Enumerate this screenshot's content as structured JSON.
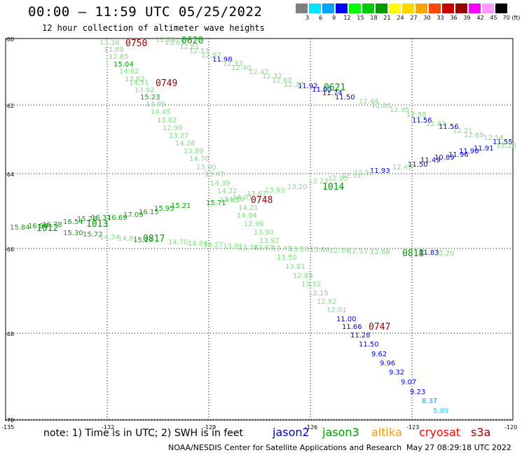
{
  "header": {
    "title": "00:00 – 11:59 UTC 05/25/2022",
    "subtitle": "12 hour collection of altimeter wave heights"
  },
  "colorbar": {
    "swatches": [
      "#7f7f7f",
      "#00e5ff",
      "#00a5ff",
      "#0000ff",
      "#00ff00",
      "#00cc00",
      "#009900",
      "#ffff00",
      "#ffd700",
      "#ffa500",
      "#ff4500",
      "#cc0000",
      "#990000",
      "#ff00ff",
      "#ff99ff",
      "#000000"
    ],
    "labels": [
      "3",
      "6",
      "9",
      "12",
      "15",
      "18",
      "21",
      "24",
      "27",
      "30",
      "33",
      "36",
      "39",
      "42",
      "45",
      "70 (ft)"
    ]
  },
  "axes": {
    "lat_labels": [
      "-60",
      "-62",
      "-64",
      "-66",
      "-68",
      "-70"
    ],
    "lon_labels": [
      "-135",
      "-132",
      "-129",
      "-126",
      "-123",
      "-120"
    ]
  },
  "footer": {
    "note": "note: 1) Time is in UTC; 2) SWH is in feet",
    "missions": [
      {
        "name": "jason2",
        "color": "#0000cc"
      },
      {
        "name": "jason3",
        "color": "#009900"
      },
      {
        "name": "altika",
        "color": "#ff9900"
      },
      {
        "name": "cryosat",
        "color": "#ff0000"
      },
      {
        "name": "s3a",
        "color": "#990000"
      }
    ],
    "credit": "NOAA/NESDIS Center for Satellite Applications and Research",
    "timestamp": "May 27 08:29:18 UTC 2022"
  },
  "map_labels": [
    {
      "t": "13.38",
      "c": "#7ee07e"
    },
    {
      "t": "13.89",
      "c": "#7ee07e"
    },
    {
      "t": "12.65",
      "c": "#7ee07e"
    },
    {
      "t": "15.04",
      "c": "#00aa00"
    },
    {
      "t": "14.62",
      "c": "#7ee07e"
    },
    {
      "t": "13.82",
      "c": "#7ee07e"
    },
    {
      "t": "14.51",
      "c": "#7ee07e"
    },
    {
      "t": "13.92",
      "c": "#7ee07e"
    },
    {
      "t": "15.23",
      "c": "#00aa00"
    },
    {
      "t": "14.95",
      "c": "#7ee07e"
    },
    {
      "t": "14.45",
      "c": "#7ee07e"
    },
    {
      "t": "13.82",
      "c": "#7ee07e"
    },
    {
      "t": "12.90",
      "c": "#7ee07e"
    },
    {
      "t": "13.27",
      "c": "#7ee07e"
    },
    {
      "t": "14.26",
      "c": "#7ee07e"
    },
    {
      "t": "13.89",
      "c": "#7ee07e"
    },
    {
      "t": "14.70",
      "c": "#7ee07e"
    },
    {
      "t": "13.90",
      "c": "#7ee07e"
    },
    {
      "t": "13.47",
      "c": "#7ee07e"
    },
    {
      "t": "14.39",
      "c": "#7ee07e"
    },
    {
      "t": "14.22",
      "c": "#7ee07e"
    },
    {
      "t": "14.30",
      "c": "#7ee07e"
    },
    {
      "t": "14.21",
      "c": "#7ee07e"
    },
    {
      "t": "14.94",
      "c": "#7ee07e"
    },
    {
      "t": "12.96",
      "c": "#7ee07e"
    },
    {
      "t": "13.90",
      "c": "#7ee07e"
    },
    {
      "t": "13.92",
      "c": "#7ee07e"
    },
    {
      "t": "13.50",
      "c": "#7ee07e"
    },
    {
      "t": "13.81",
      "c": "#7ee07e"
    },
    {
      "t": "12.89",
      "c": "#7ee07e"
    },
    {
      "t": "13.52",
      "c": "#7ee07e"
    },
    {
      "t": "12.15",
      "c": "#7ee07e"
    },
    {
      "t": "12.92",
      "c": "#7ee07e"
    },
    {
      "t": "12.01",
      "c": "#7ee07e"
    },
    {
      "t": "11.00",
      "c": "#0000ff"
    },
    {
      "t": "11.66",
      "c": "#0000ff"
    },
    {
      "t": "11.28",
      "c": "#0000ff"
    },
    {
      "t": "11.50",
      "c": "#0000ff"
    },
    {
      "t": "9.62",
      "c": "#0000ff"
    },
    {
      "t": "9.96",
      "c": "#0000ff"
    },
    {
      "t": "9.32",
      "c": "#0000ff"
    },
    {
      "t": "9.07",
      "c": "#0000ff"
    },
    {
      "t": "9.23",
      "c": "#0000ff"
    },
    {
      "t": "8.37",
      "c": "#00a5ff"
    },
    {
      "t": "5.89",
      "c": "#00e5ff"
    },
    {
      "t": "12.79",
      "c": "#7ee07e"
    },
    {
      "t": "13.65",
      "c": "#7ee07e"
    },
    {
      "t": "12.81",
      "c": "#7ee07e"
    },
    {
      "t": "12.53",
      "c": "#7ee07e"
    },
    {
      "t": "12.87",
      "c": "#7ee07e"
    },
    {
      "t": "11.98",
      "c": "#0000ff"
    },
    {
      "t": "12.33",
      "c": "#7ee07e"
    },
    {
      "t": "12.40",
      "c": "#7ee07e"
    },
    {
      "t": "12.42",
      "c": "#7ee07e"
    },
    {
      "t": "12.32",
      "c": "#7ee07e"
    },
    {
      "t": "12.62",
      "c": "#7ee07e"
    },
    {
      "t": "12.32",
      "c": "#7ee07e"
    },
    {
      "t": "11.92",
      "c": "#0000ff"
    },
    {
      "t": "11.03",
      "c": "#0000ff"
    },
    {
      "t": "11.74",
      "c": "#0000ff"
    },
    {
      "t": "11.50",
      "c": "#0000ff"
    },
    {
      "t": "12.44",
      "c": "#7ee07e"
    },
    {
      "t": "12.85",
      "c": "#7ee07e"
    },
    {
      "t": "12.95",
      "c": "#7ee07e"
    },
    {
      "t": "12.58",
      "c": "#7ee07e"
    },
    {
      "t": "11.56",
      "c": "#0000ff"
    },
    {
      "t": "12.82",
      "c": "#7ee07e"
    },
    {
      "t": "11.56",
      "c": "#0000ff"
    },
    {
      "t": "12.21",
      "c": "#7ee07e"
    },
    {
      "t": "12.69",
      "c": "#7ee07e"
    },
    {
      "t": "12.14",
      "c": "#7ee07e"
    },
    {
      "t": "11.55",
      "c": "#0000ff"
    },
    {
      "t": "12.20",
      "c": "#7ee07e"
    },
    {
      "t": "11.91",
      "c": "#0000ff"
    },
    {
      "t": "11.90",
      "c": "#0000ff"
    },
    {
      "t": "11.96",
      "c": "#0000ff"
    },
    {
      "t": "10.89",
      "c": "#0000ff"
    },
    {
      "t": "11.49",
      "c": "#0000ff"
    },
    {
      "t": "11.50",
      "c": "#0000ff"
    },
    {
      "t": "12.49",
      "c": "#7ee07e"
    },
    {
      "t": "11.93",
      "c": "#0000ff"
    },
    {
      "t": "12.53",
      "c": "#7ee07e"
    },
    {
      "t": "12.51",
      "c": "#7ee07e"
    },
    {
      "t": "12.95",
      "c": "#7ee07e"
    },
    {
      "t": "13.23",
      "c": "#7ee07e"
    },
    {
      "t": "13.20",
      "c": "#7ee07e"
    },
    {
      "t": "13.93",
      "c": "#7ee07e"
    },
    {
      "t": "13.67",
      "c": "#7ee07e"
    },
    {
      "t": "14.01",
      "c": "#7ee07e"
    },
    {
      "t": "14.65",
      "c": "#7ee07e"
    },
    {
      "t": "15.71",
      "c": "#00aa00"
    },
    {
      "t": "15.21",
      "c": "#00aa00"
    },
    {
      "t": "15.95",
      "c": "#00aa00"
    },
    {
      "t": "16.15",
      "c": "#00aa00"
    },
    {
      "t": "17.09",
      "c": "#00aa00"
    },
    {
      "t": "16.69",
      "c": "#00aa00"
    },
    {
      "t": "16.31",
      "c": "#00aa00"
    },
    {
      "t": "15.76",
      "c": "#00aa00"
    },
    {
      "t": "16.54",
      "c": "#00aa00"
    },
    {
      "t": "16.78",
      "c": "#00aa00"
    },
    {
      "t": "16.98",
      "c": "#00aa00"
    },
    {
      "t": "15.84",
      "c": "#00aa00"
    },
    {
      "t": "15.30",
      "c": "#00aa00"
    },
    {
      "t": "15.72",
      "c": "#00aa00"
    },
    {
      "t": "14.34",
      "c": "#7ee07e"
    },
    {
      "t": "14.81",
      "c": "#7ee07e"
    },
    {
      "t": "15.17",
      "c": "#00aa00"
    },
    {
      "t": "14.70",
      "c": "#7ee07e"
    },
    {
      "t": "14.94",
      "c": "#7ee07e"
    },
    {
      "t": "14.27",
      "c": "#7ee07e"
    },
    {
      "t": "13.81",
      "c": "#7ee07e"
    },
    {
      "t": "13.78",
      "c": "#7ee07e"
    },
    {
      "t": "13.63",
      "c": "#7ee07e"
    },
    {
      "t": "13.49",
      "c": "#7ee07e"
    },
    {
      "t": "13.58",
      "c": "#7ee07e"
    },
    {
      "t": "13.66",
      "c": "#7ee07e"
    },
    {
      "t": "12.34",
      "c": "#7ee07e"
    },
    {
      "t": "12.53",
      "c": "#7ee07e"
    },
    {
      "t": "12.68",
      "c": "#7ee07e"
    },
    {
      "t": "11.83",
      "c": "#0000ff"
    },
    {
      "t": "12.20",
      "c": "#7ee07e"
    }
  ],
  "time_labels": [
    {
      "t": "0750",
      "c": "#990000"
    },
    {
      "t": "0620",
      "c": "#009900"
    },
    {
      "t": "0749",
      "c": "#990000"
    },
    {
      "t": "0621",
      "c": "#009900"
    },
    {
      "t": "1014",
      "c": "#009900"
    },
    {
      "t": "0748",
      "c": "#990000"
    },
    {
      "t": "1013",
      "c": "#009900"
    },
    {
      "t": "0817",
      "c": "#009900"
    },
    {
      "t": "0818",
      "c": "#009900"
    },
    {
      "t": "0747",
      "c": "#990000"
    },
    {
      "t": "1012",
      "c": "#009900"
    }
  ]
}
